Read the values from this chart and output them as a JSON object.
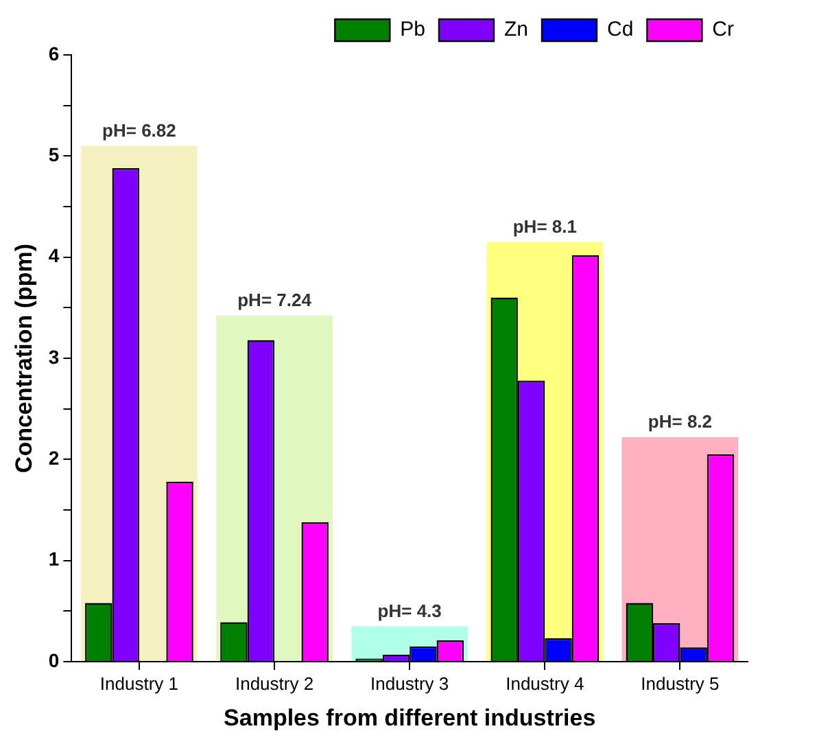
{
  "chart_data": {
    "type": "bar",
    "xlabel": "Samples from different industries",
    "ylabel": "Concentration (ppm)",
    "categories": [
      "Industry 1",
      "Industry 2",
      "Industry 3",
      "Industry 4",
      "Industry 5"
    ],
    "series": [
      {
        "name": "Pb",
        "color": "#008000",
        "values": [
          0.58,
          0.39,
          0.03,
          3.6,
          0.58
        ]
      },
      {
        "name": "Zn",
        "color": "#8000ff",
        "values": [
          4.88,
          3.18,
          0.07,
          2.78,
          0.38
        ]
      },
      {
        "name": "Cd",
        "color": "#0000ff",
        "values": [
          null,
          null,
          0.15,
          0.23,
          0.14
        ]
      },
      {
        "name": "Cr",
        "color": "#ff00ff",
        "values": [
          1.78,
          1.38,
          0.21,
          4.02,
          2.05
        ]
      },
      {
        "type": "bar",
        "colors": [
          "#f5f0c0",
          "#e0f8c0",
          "#b0ffe8",
          "#ffff80",
          "#ffb0c0"
        ],
        "values": [
          5.1,
          3.42,
          0.35,
          4.15,
          2.22
        ]
      }
    ],
    "annotations": [
      {
        "text": "pH= 6.82",
        "x": "Industry 1",
        "y": 5.1
      },
      {
        "text": "pH= 7.24",
        "x": "Industry 2",
        "y": 3.42
      },
      {
        "text": "pH= 4.3",
        "x": "Industry 3",
        "y": 0.35
      },
      {
        "text": "pH= 8.1",
        "x": "Industry 4",
        "y": 4.15
      },
      {
        "text": "pH= 8.2",
        "x": "Industry 5",
        "y": 2.22
      }
    ],
    "ylim": [
      0,
      6
    ],
    "yticks": [
      0,
      {
        "value": 0.5,
        "label": null
      },
      1,
      {
        "value": 1.5,
        "label": null
      },
      2,
      {
        "value": 2.5,
        "label": null
      },
      3,
      {
        "value": 3.5,
        "label": null
      },
      4,
      {
        "value": 4.5,
        "label": null
      },
      5,
      {
        "value": 5.5,
        "label": null
      },
      6
    ],
    "grid": false,
    "legend": "top"
  }
}
